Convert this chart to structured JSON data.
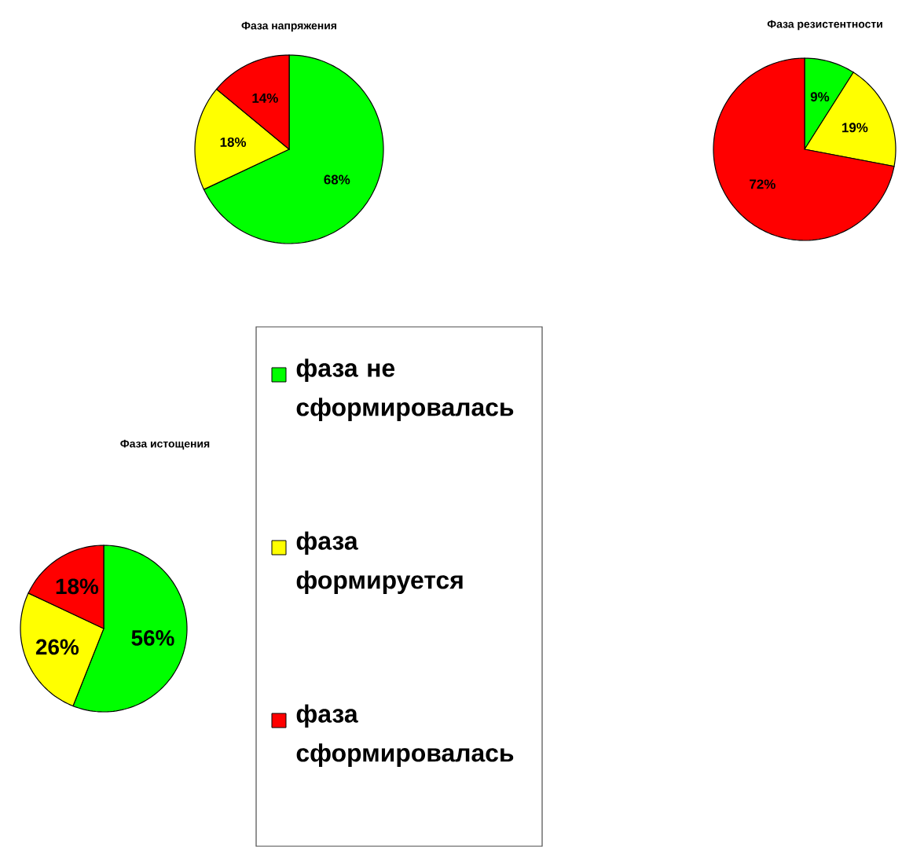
{
  "chart_data": [
    {
      "type": "pie",
      "title": "Фаза напряжения",
      "categories": [
        null,
        null,
        null
      ],
      "values": [
        68,
        18,
        14
      ],
      "colors": [
        "#00ff00",
        "#ffff00",
        "#ff0000"
      ],
      "value_labels": [
        "68%",
        "18%",
        "14%"
      ]
    },
    {
      "type": "pie",
      "title": "Фаза резистентности",
      "categories": [
        null,
        null,
        null
      ],
      "values": [
        9,
        19,
        72
      ],
      "colors": [
        "#00ff00",
        "#ffff00",
        "#ff0000"
      ],
      "value_labels": [
        "9%",
        "19%",
        "72%"
      ]
    },
    {
      "type": "pie",
      "title": "Фаза истощения",
      "categories": [
        "фаза не сформировалась",
        "фаза формируется",
        "фаза сформировалась"
      ],
      "values": [
        56,
        26,
        18
      ],
      "colors": [
        "#00ff00",
        "#ffff00",
        "#ff0000"
      ],
      "value_labels": [
        "56%",
        "26%",
        "18%"
      ],
      "legend": "right"
    }
  ]
}
